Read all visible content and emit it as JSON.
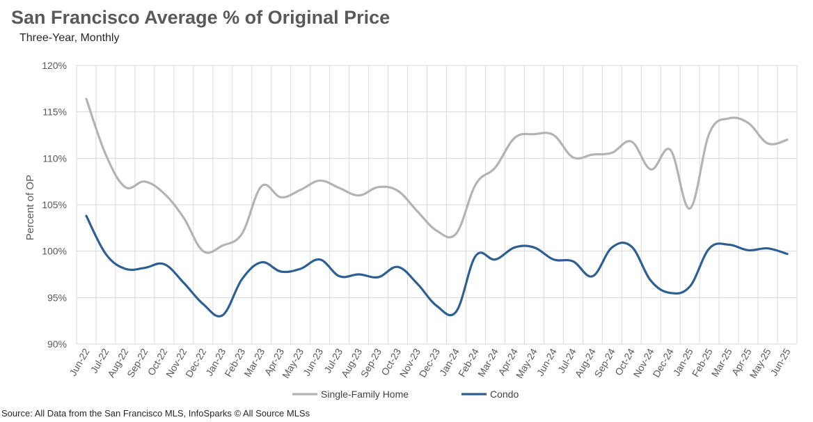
{
  "header": {
    "title": "San Francisco Average % of Original Price",
    "subtitle": "Three-Year, Monthly"
  },
  "footer": {
    "source": "Source: All Data from the San Francisco MLS, InfoSparks © All Source MLSs"
  },
  "colors": {
    "single_family": "#b3b3b3",
    "condo": "#2e5f93",
    "grid": "#d9d9d9"
  },
  "chart_data": {
    "type": "line",
    "title": "San Francisco Average % of Original Price",
    "subtitle": "Three-Year, Monthly",
    "xlabel": "",
    "ylabel": "Percent of OP",
    "ylim": [
      90,
      120
    ],
    "ytick_values": [
      90,
      95,
      100,
      105,
      110,
      115,
      120
    ],
    "ytick_labels": [
      "90%",
      "95%",
      "100%",
      "105%",
      "110%",
      "115%",
      "120%"
    ],
    "grid": true,
    "legend_position": "bottom",
    "categories": [
      "Jun-22",
      "Jul-22",
      "Aug-22",
      "Sep-22",
      "Oct-22",
      "Nov-22",
      "Dec-22",
      "Jan-23",
      "Feb-23",
      "Mar-23",
      "Apr-23",
      "May-23",
      "Jun-23",
      "Jul-23",
      "Aug-23",
      "Sep-23",
      "Oct-23",
      "Nov-23",
      "Dec-23",
      "Jan-24",
      "Feb-24",
      "Mar-24",
      "Apr-24",
      "May-24",
      "Jun-24",
      "Jul-24",
      "Aug-24",
      "Sep-24",
      "Oct-24",
      "Nov-24",
      "Dec-24",
      "Jan-25",
      "Feb-25",
      "Mar-25",
      "Apr-25",
      "May-25",
      "Jun-25"
    ],
    "series": [
      {
        "name": "Single-Family Home",
        "values": [
          116.4,
          110.4,
          106.9,
          107.5,
          106.2,
          103.6,
          100.0,
          100.6,
          101.9,
          107.0,
          105.8,
          106.6,
          107.6,
          106.8,
          106.0,
          106.9,
          106.5,
          104.3,
          102.2,
          101.9,
          107.2,
          109.0,
          112.2,
          112.6,
          112.5,
          110.1,
          110.4,
          110.6,
          111.8,
          108.8,
          110.9,
          104.6,
          112.7,
          114.3,
          113.8,
          111.6,
          112.0
        ]
      },
      {
        "name": "Condo",
        "values": [
          103.8,
          99.7,
          98.1,
          98.2,
          98.6,
          96.6,
          94.3,
          93.1,
          97.0,
          98.8,
          97.8,
          98.1,
          99.1,
          97.3,
          97.5,
          97.2,
          98.3,
          96.5,
          94.1,
          93.5,
          99.5,
          99.1,
          100.4,
          100.4,
          99.1,
          98.9,
          97.3,
          100.4,
          100.5,
          96.8,
          95.5,
          96.2,
          100.3,
          100.7,
          100.1,
          100.3,
          99.7
        ]
      }
    ]
  }
}
